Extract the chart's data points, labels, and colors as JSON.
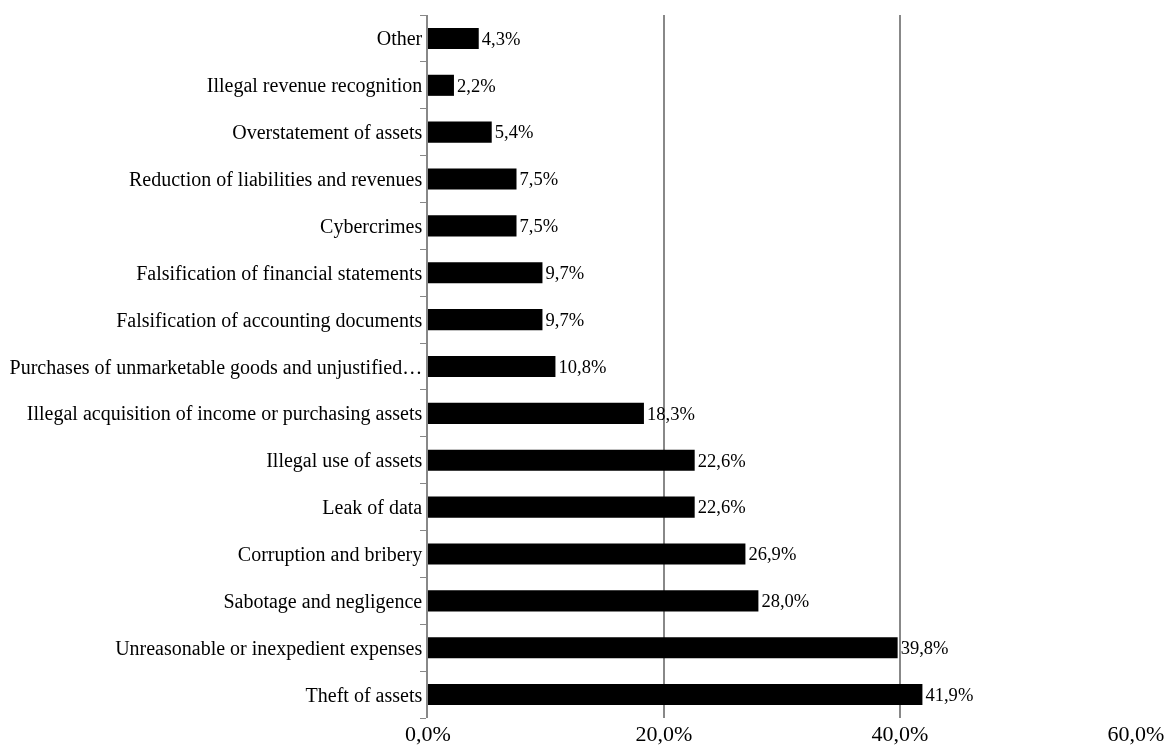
{
  "chart_data": {
    "type": "bar",
    "orientation": "horizontal",
    "categories": [
      "Other",
      "Illegal revenue recognition",
      "Overstatement of assets",
      "Reduction of liabilities and revenues",
      "Cybercrimes",
      "Falsification of financial statements",
      "Falsification of accounting documents",
      "Purchases of unmarketable goods and unjustified…",
      "Illegal acquisition of income or purchasing assets",
      "Illegal use of assets",
      "Leak of data",
      "Corruption and bribery",
      "Sabotage and negligence",
      "Unreasonable or inexpedient expenses",
      "Theft of assets"
    ],
    "values": [
      4.3,
      2.2,
      5.4,
      7.5,
      7.5,
      9.7,
      9.7,
      10.8,
      18.3,
      22.6,
      22.6,
      26.9,
      28.0,
      39.8,
      41.9
    ],
    "value_labels": [
      "4,3%",
      "2,2%",
      "5,4%",
      "7,5%",
      "7,5%",
      "9,7%",
      "9,7%",
      "10,8%",
      "18,3%",
      "22,6%",
      "22,6%",
      "26,9%",
      "28,0%",
      "39,8%",
      "41,9%"
    ],
    "color": "#000000",
    "xlim": [
      0,
      60
    ],
    "xticks": [
      {
        "value": 0,
        "label": "0,0%"
      },
      {
        "value": 20,
        "label": "20,0%"
      },
      {
        "value": 40,
        "label": "40,0%"
      },
      {
        "value": 60,
        "label": "60,0%"
      }
    ],
    "grid": "x",
    "legend": false
  }
}
